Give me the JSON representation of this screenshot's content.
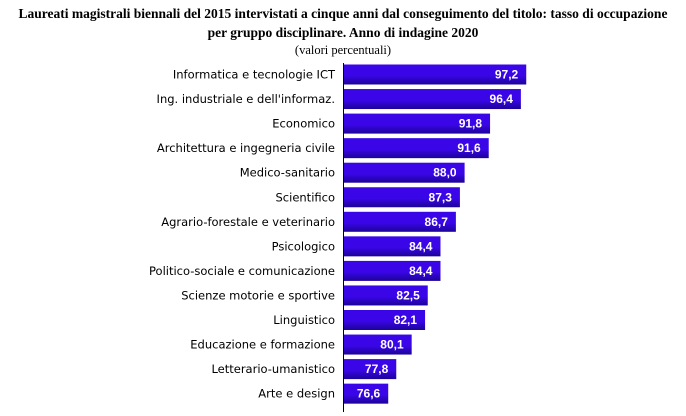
{
  "title_line1": "Laureati magistrali biennali del 2015 intervistati a cinque anni dal conseguimento del titolo: tasso di occupazione",
  "title_line2": "per gruppo disciplinare. Anno di indagine 2020",
  "subtitle": "(valori percentuali)",
  "chart_data": {
    "type": "bar",
    "orientation": "horizontal",
    "title": "Laureati magistrali biennali del 2015 intervistati a cinque anni dal conseguimento del titolo: tasso di occupazione per gruppo disciplinare. Anno di indagine 2020",
    "subtitle": "(valori percentuali)",
    "categories": [
      "Informatica e tecnologie ICT",
      "Ing. industriale e dell'informaz.",
      "Economico",
      "Architettura e ingegneria civile",
      "Medico-sanitario",
      "Scientifico",
      "Agrario-forestale e veterinario",
      "Psicologico",
      "Politico-sociale e comunicazione",
      "Scienze motorie e sportive",
      "Linguistico",
      "Educazione e formazione",
      "Letterario-umanistico",
      "Arte e design"
    ],
    "values": [
      97.2,
      96.4,
      91.8,
      91.6,
      88.0,
      87.3,
      86.7,
      84.4,
      84.4,
      82.5,
      82.1,
      80.1,
      77.8,
      76.6
    ],
    "value_labels": [
      "97,2",
      "96,4",
      "91,8",
      "91,6",
      "88,0",
      "87,3",
      "86,7",
      "84,4",
      "84,4",
      "82,5",
      "82,1",
      "80,1",
      "77,8",
      "76,6"
    ],
    "xlim": [
      0,
      100
    ],
    "bar_color": "#3a06e8",
    "bar_gradient_dark": "#1c0398",
    "grid": false,
    "legend": "none"
  }
}
